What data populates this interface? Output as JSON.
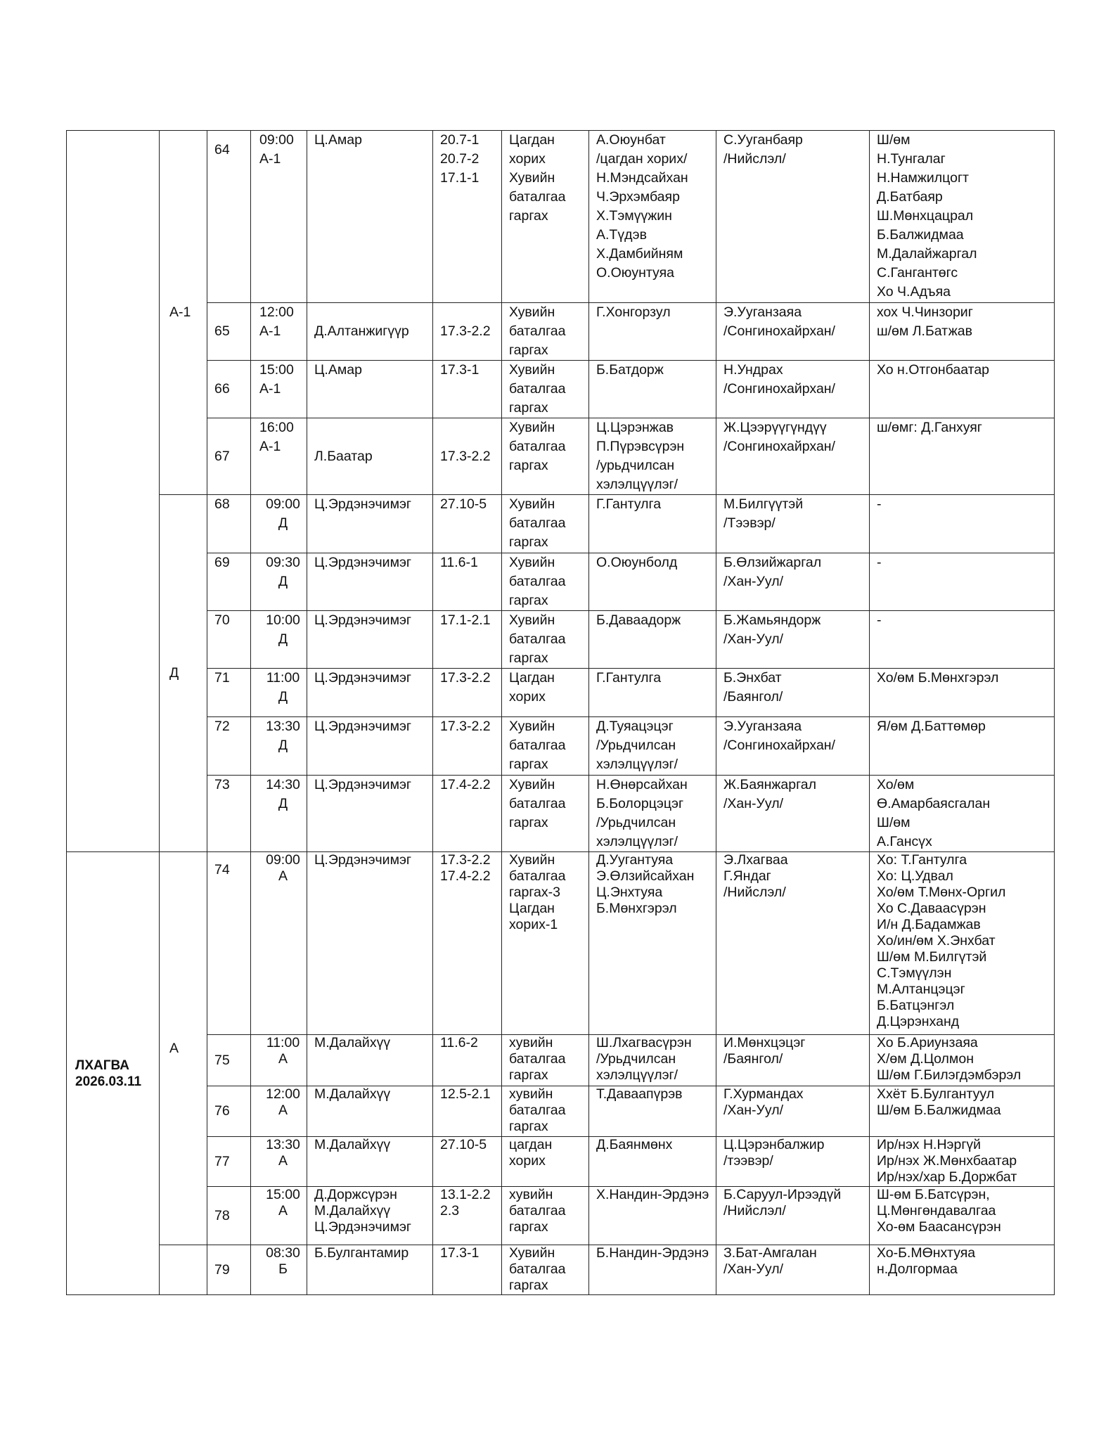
{
  "day_groups": [
    {
      "label": ""
    },
    {
      "label": "ЛХАГВА\n2026.03.11"
    }
  ],
  "rooms": [
    {
      "label": "А-1"
    },
    {
      "label": "Д"
    },
    {
      "label": "А"
    },
    {
      "label": ""
    }
  ],
  "rows": [
    {
      "no": "64",
      "time": "09:00\nА-1",
      "judge": "Ц.Амар",
      "article": "20.7-1\n20.7-2\n17.1-1",
      "case_type": "Цагдан\nхорих\nХувийн\nбаталгаа\nгаргах",
      "parties": "А.Оюунбат\n/цагдан хорих/\nН.Мэндсайхан\nЧ.Эрхэмбаяр\nХ.Тэмүүжин\nА.Түдэв\nХ.Дамбийням\nО.Оюунтуяа",
      "prosecutor": "С.Ууганбаяр\n/Нийслэл/",
      "others": "Ш/өм\nН.Тунгалаг\nН.Намжилцогт\nД.Батбаяр\nШ.Мөнхцацрал\nБ.Балжидмаа\nМ.Далайжаргал\nС.Гангантөгс\nХо Ч.Адъяа"
    },
    {
      "no": "65",
      "time": "12:00\nА-1",
      "judge": "Д.Алтанжигүүр",
      "article": "17.3-2.2",
      "case_type": "Хувийн\nбаталгаа\nгаргах",
      "parties": "Г.Хонгорзул",
      "prosecutor": "Э.Ууганзаяа\n/Сонгинохайрхан/",
      "others": "хох Ч.Чинзориг\nш/өм Л.Батжав"
    },
    {
      "no": "66",
      "time": "15:00\nА-1",
      "judge": "Ц.Амар",
      "article": "17.3-1",
      "case_type": "Хувийн\nбаталгаа\nгаргах",
      "parties": "Б.Батдорж",
      "prosecutor": "Н.Ундрах\n/Сонгинохайрхан/",
      "others": "Хо н.Отгонбаатар"
    },
    {
      "no": "67",
      "time": "16:00\nА-1",
      "judge": "Л.Баатар",
      "article": "17.3-2.2",
      "case_type": "Хувийн\nбаталгаа\nгаргах",
      "parties": "Ц.Цэрэнжав\nП.Пүрэвсүрэн\n/урьдчилсан\nхэлэлцүүлэг/",
      "prosecutor": "Ж.Цээрүүгүндүү\n/Сонгинохайрхан/",
      "others": "ш/өмг: Д.Ганхуяг"
    },
    {
      "no": "68",
      "time": "09:00\nД",
      "judge": "Ц.Эрдэнэчимэг",
      "article": "27.10-5",
      "case_type": "Хувийн\nбаталгаа\nгаргах",
      "parties": "Г.Гантулга",
      "prosecutor": "М.Билгүүтэй\n/Тээвэр/",
      "others": "-"
    },
    {
      "no": "69",
      "time": "09:30\nД",
      "judge": "Ц.Эрдэнэчимэг",
      "article": "11.6-1",
      "case_type": "Хувийн\nбаталгаа\nгаргах",
      "parties": "О.Оюунболд",
      "prosecutor": "Б.Өлзийжаргал\n/Хан-Уул/",
      "others": "-"
    },
    {
      "no": "70",
      "time": "10:00\nД",
      "judge": "Ц.Эрдэнэчимэг",
      "article": "17.1-2.1",
      "case_type": "Хувийн\nбаталгаа\nгаргах",
      "parties": "Б.Даваадорж",
      "prosecutor": "Б.Жамьяндорж\n/Хан-Уул/",
      "others": "-"
    },
    {
      "no": "71",
      "time": "11:00\nД",
      "judge": "Ц.Эрдэнэчимэг",
      "article": "17.3-2.2",
      "case_type": "Цагдан\nхорих",
      "parties": "Г.Гантулга",
      "prosecutor": "Б.Энхбат\n/Баянгол/",
      "others": "Хо/өм Б.Мөнхгэрэл"
    },
    {
      "no": "72",
      "time": "13:30\nД",
      "judge": "Ц.Эрдэнэчимэг",
      "article": "17.3-2.2",
      "case_type": "Хувийн\nбаталгаа\nгаргах",
      "parties": "Д.Туяацэцэг\n/Урьдчилсан\nхэлэлцүүлэг/",
      "prosecutor": "Э.Ууганзаяа\n/Сонгинохайрхан/",
      "others": "Я/өм Д.Баттөмөр"
    },
    {
      "no": "73",
      "time": "14:30\nД",
      "judge": "Ц.Эрдэнэчимэг",
      "article": "17.4-2.2",
      "case_type": "Хувийн\nбаталгаа\nгаргах",
      "parties": "Н.Өнөрсайхан\nБ.Болорцэцэг\n/Урьдчилсан\nхэлэлцүүлэг/",
      "prosecutor": "Ж.Баянжаргал\n/Хан-Уул/",
      "others": "Хо/өм\nӨ.Амарбаясгалан\nШ/өм\nА.Гансүх"
    },
    {
      "no": "74",
      "time": "09:00\nА",
      "judge": "Ц.Эрдэнэчимэг",
      "article": "17.3-2.2\n17.4-2.2",
      "case_type": "Хувийн\nбаталгаа\nгаргах-3\nЦагдан\nхорих-1",
      "parties": "Д.Уугантуяа\nЭ.Өлзийсайхан\nЦ.Энхтуяа\nБ.Мөнхгэрэл",
      "prosecutor": "Э.Лхагваа\nГ.Яндаг\n/Нийслэл/",
      "others": "Хо: Т.Гантулга\nХо: Ц.Удвал\nХо/өм Т.Мөнх-Оргил\nХо С.Даваасүрэн\nИ/н Д.Бадамжав\nХо/ин/өм Х.Энхбат\nШ/өм М.Билгүтэй\nС.Тэмүүлэн\nМ.Алтанцэцэг\nБ.Батцэнгэл\nД.Цэрэнханд"
    },
    {
      "no": "75",
      "time": "11:00\nА",
      "judge": "М.Далайхүү",
      "article": "11.6-2",
      "case_type": "хувийн\nбаталгаа\nгаргах",
      "parties": "Ш.Лхагвасүрэн\n/Урьдчилсан\nхэлэлцүүлэг/",
      "prosecutor": "И.Мөнхцэцэг\n/Баянгол/",
      "others": "Хо Б.Ариунзаяа\nХ/өм Д.Цолмон\nШ/өм Г.Билэгдэмбэрэл"
    },
    {
      "no": "76",
      "time": "12:00\nА",
      "judge": "М.Далайхүү",
      "article": "12.5-2.1",
      "case_type": "хувийн\nбаталгаа\nгаргах",
      "parties": "Т.Даваапүрэв",
      "prosecutor": "Г.Хурмандах\n/Хан-Уул/",
      "others": "Ххёт Б.Булгантуул\nШ/өм Б.Балжидмаа"
    },
    {
      "no": "77",
      "time": "13:30\nА",
      "judge": "М.Далайхүү",
      "article": "27.10-5",
      "case_type": "цагдан\nхорих",
      "parties": "Д.Баянмөнх",
      "prosecutor": "Ц.Цэрэнбалжир\n/тээвэр/",
      "others": "Ир/нэх Н.Нэргүй\nИр/нэх Ж.Мөнхбаатар\nИр/нэх/хар Б.Доржбат"
    },
    {
      "no": "78",
      "time": "15:00\nА",
      "judge": "Д.Доржсүрэн\nМ.Далайхүү\nЦ.Эрдэнэчимэг",
      "article": "13.1-2.2\n2.3",
      "case_type": "хувийн\nбаталгаа\nгаргах",
      "parties": "Х.Нандин-Эрдэнэ",
      "prosecutor": "Б.Саруул-Ирээдүй\n/Нийслэл/",
      "others": "Ш-өм Б.Батсүрэн,\nЦ.Мөнгөндавалгаа\nХо-өм Баасансүрэн"
    },
    {
      "no": "79",
      "time": "08:30\nБ",
      "judge": "Б.Булгантамир",
      "article": "17.3-1",
      "case_type": "Хувийн\nбаталгаа\nгаргах",
      "parties": "Б.Нандин-Эрдэнэ",
      "prosecutor": "З.Бат-Амгалан\n/Хан-Уул/",
      "others": "Хо-Б.МӨнхтуяа\nн.Долгормаа"
    }
  ]
}
